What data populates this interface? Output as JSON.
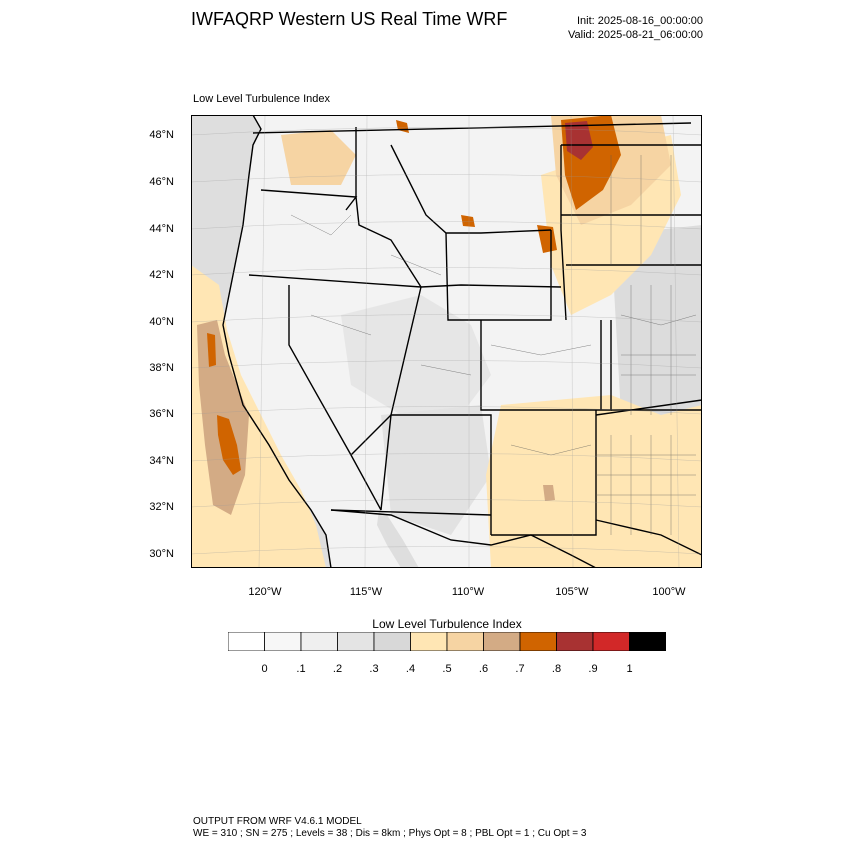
{
  "header": {
    "title": "IWFAQRP Western US Real Time WRF",
    "init": "Init: 2025-08-16_00:00:00",
    "valid": "Valid: 2025-08-21_06:00:00"
  },
  "map": {
    "subtitle": "Low Level Turbulence Index",
    "lat_labels": [
      "48°N",
      "46°N",
      "44°N",
      "42°N",
      "40°N",
      "38°N",
      "36°N",
      "34°N",
      "32°N",
      "30°N"
    ],
    "lon_labels": [
      "120°W",
      "115°W",
      "110°W",
      "105°W",
      "100°W"
    ]
  },
  "colorbar": {
    "title": "Low Level Turbulence Index",
    "colors": [
      "#ffffff",
      "#f7f7f7",
      "#efefef",
      "#e4e4e4",
      "#d8d8d8",
      "#ffe6b4",
      "#f6d4a3",
      "#d3ab85",
      "#d06400",
      "#a83232",
      "#d22828",
      "#000000"
    ],
    "labels": [
      "0",
      ".1",
      ".2",
      ".3",
      ".4",
      ".5",
      ".6",
      ".7",
      ".8",
      ".9",
      "1"
    ]
  },
  "footer": {
    "line1": "OUTPUT FROM WRF V4.6.1 MODEL",
    "line2": "WE = 310 ; SN = 275 ; Levels = 38 ; Dis = 8km ; Phys Opt = 8 ; PBL Opt = 1 ; Cu Opt = 3"
  }
}
